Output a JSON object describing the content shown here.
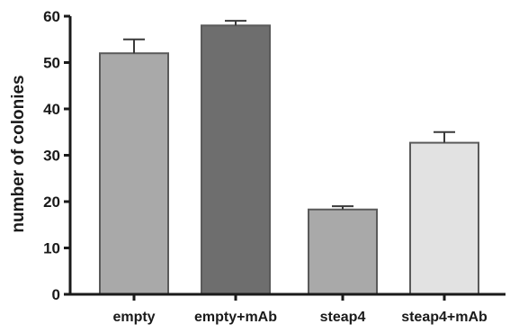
{
  "chart_data": {
    "type": "bar",
    "categories": [
      "empty",
      "empty+mAb",
      "steap4",
      "steap4+mAb"
    ],
    "values": [
      52,
      58,
      18.3,
      32.7
    ],
    "error": [
      3,
      1,
      0.7,
      2.3
    ],
    "ylabel": "number of colonies",
    "xlabel": "",
    "ylim": [
      0,
      60
    ],
    "yticks": [
      0,
      10,
      20,
      30,
      40,
      50,
      60
    ],
    "grid": false,
    "colors": [
      "#a9a9a9",
      "#6e6e6e",
      "#a9a9a9",
      "#e2e2e2"
    ],
    "bar_stroke": "#5a5a5a",
    "axis_color": "#1a1a1a"
  }
}
